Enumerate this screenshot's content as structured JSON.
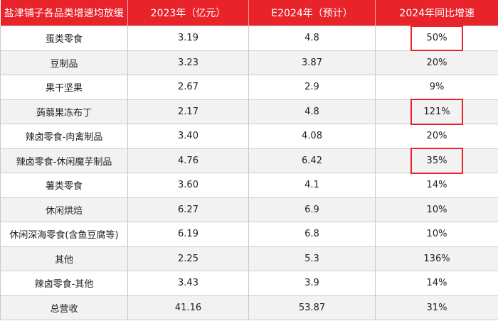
{
  "header": [
    "盐津铺子各品类增速均放缓",
    "2023年（亿元）",
    "E2024年（预计）",
    "2024年同比增速"
  ],
  "rows": [
    {
      "category": "蛋类零食",
      "v2023": "3.19",
      "v2024e": "4.8",
      "growth": "50%",
      "highlight": true
    },
    {
      "category": "豆制品",
      "v2023": "3.23",
      "v2024e": "3.87",
      "growth": "20%",
      "highlight": false
    },
    {
      "category": "果干坚果",
      "v2023": "2.67",
      "v2024e": "2.9",
      "growth": "9%",
      "highlight": false
    },
    {
      "category": "蒟蒻果冻布丁",
      "v2023": "2.17",
      "v2024e": "4.8",
      "growth": "121%",
      "highlight": true
    },
    {
      "category": "辣卤零食-肉禽制品",
      "v2023": "3.40",
      "v2024e": "4.08",
      "growth": "20%",
      "highlight": false
    },
    {
      "category": "辣卤零食-休闲魔芋制品",
      "v2023": "4.76",
      "v2024e": "6.42",
      "growth": "35%",
      "highlight": true
    },
    {
      "category": "薯类零食",
      "v2023": "3.60",
      "v2024e": "4.1",
      "growth": "14%",
      "highlight": false
    },
    {
      "category": "休闲烘焙",
      "v2023": "6.27",
      "v2024e": "6.9",
      "growth": "10%",
      "highlight": false
    },
    {
      "category": "休闲深海零食(含鱼豆腐等)",
      "v2023": "6.19",
      "v2024e": "6.8",
      "growth": "10%",
      "highlight": false
    },
    {
      "category": "其他",
      "v2023": "2.25",
      "v2024e": "5.3",
      "growth": "136%",
      "highlight": false
    },
    {
      "category": "辣卤零食-其他",
      "v2023": "3.43",
      "v2024e": "3.9",
      "growth": "14%",
      "highlight": false
    },
    {
      "category": "总营收",
      "v2023": "41.16",
      "v2024e": "53.87",
      "growth": "31%",
      "highlight": false
    }
  ],
  "colors": {
    "header_bg": "#e8232a",
    "highlight_border": "#e8232a",
    "stripe": "#f2f2f2"
  }
}
